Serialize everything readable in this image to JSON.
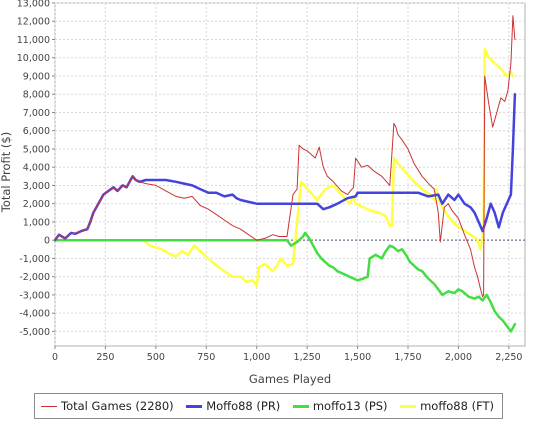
{
  "chart_data": {
    "type": "line",
    "title": "",
    "xlabel": "Games Played",
    "ylabel": "Total Profit ($)",
    "xlim": [
      0,
      2330
    ],
    "ylim": [
      -5800,
      13000
    ],
    "x_ticks": [
      0,
      250,
      500,
      750,
      1000,
      1250,
      1500,
      1750,
      2000,
      2250
    ],
    "x_tick_labels": [
      "0",
      "250",
      "500",
      "750",
      "1,000",
      "1,250",
      "1,500",
      "1,750",
      "2,000",
      "2,250"
    ],
    "y_ticks": [
      -5000,
      -4000,
      -3000,
      -2000,
      -1000,
      0,
      1000,
      2000,
      3000,
      4000,
      5000,
      6000,
      7000,
      8000,
      9000,
      10000,
      11000,
      12000,
      13000
    ],
    "y_tick_labels": [
      "-5,000",
      "-4,000",
      "-3,000",
      "-2,000",
      "-1,000",
      "0",
      "1,000",
      "2,000",
      "3,000",
      "4,000",
      "5,000",
      "6,000",
      "7,000",
      "8,000",
      "9,000",
      "10,000",
      "11,000",
      "12,000",
      "13,000"
    ],
    "grid": true,
    "zero_line": true,
    "legend_position": "bottom",
    "series": [
      {
        "name": "Total Games (2280)",
        "color": "#cc3333",
        "width": 1,
        "x": [
          0,
          20,
          50,
          80,
          100,
          130,
          160,
          175,
          190,
          215,
          240,
          265,
          290,
          310,
          335,
          355,
          370,
          385,
          400,
          420,
          450,
          500,
          550,
          600,
          640,
          680,
          720,
          760,
          800,
          840,
          880,
          920,
          960,
          1000,
          1040,
          1080,
          1110,
          1150,
          1180,
          1200,
          1210,
          1230,
          1250,
          1270,
          1290,
          1310,
          1330,
          1350,
          1380,
          1420,
          1450,
          1480,
          1490,
          1520,
          1550,
          1580,
          1620,
          1660,
          1680,
          1690,
          1700,
          1720,
          1750,
          1780,
          1820,
          1860,
          1880,
          1900,
          1910,
          1930,
          1950,
          1970,
          2000,
          2030,
          2060,
          2080,
          2095,
          2110,
          2120,
          2125,
          2130,
          2150,
          2170,
          2190,
          2210,
          2230,
          2245,
          2260,
          2270,
          2280
        ],
        "y": [
          0,
          300,
          100,
          400,
          350,
          500,
          600,
          1000,
          1500,
          2000,
          2500,
          2700,
          2900,
          2700,
          3000,
          2900,
          3200,
          3500,
          3300,
          3200,
          3100,
          3000,
          2700,
          2400,
          2300,
          2400,
          1900,
          1700,
          1400,
          1100,
          800,
          600,
          300,
          0,
          100,
          300,
          200,
          200,
          2500,
          2800,
          5200,
          5000,
          4900,
          4700,
          4500,
          5100,
          4000,
          3500,
          3200,
          2700,
          2500,
          2900,
          4500,
          4000,
          4100,
          3800,
          3500,
          3000,
          6400,
          6200,
          5800,
          5500,
          5000,
          4200,
          3500,
          3000,
          2800,
          1500,
          -100,
          1800,
          2000,
          1600,
          1200,
          300,
          -500,
          -1500,
          -2000,
          -2700,
          -3100,
          -3000,
          9000,
          7500,
          6200,
          7000,
          7800,
          7600,
          8200,
          9700,
          12300,
          11000
        ]
      },
      {
        "name": "Moffo88 (PR)",
        "color": "#4444dd",
        "width": 2.5,
        "x": [
          0,
          20,
          50,
          80,
          100,
          130,
          160,
          175,
          190,
          215,
          240,
          265,
          290,
          310,
          335,
          355,
          370,
          385,
          400,
          420,
          450,
          500,
          550,
          600,
          640,
          680,
          700,
          720,
          760,
          800,
          840,
          880,
          900,
          920,
          960,
          1000,
          1100,
          1200,
          1300,
          1330,
          1360,
          1400,
          1450,
          1490,
          1500,
          1600,
          1700,
          1800,
          1850,
          1900,
          1920,
          1950,
          1980,
          2000,
          2030,
          2060,
          2080,
          2100,
          2120,
          2140,
          2160,
          2180,
          2200,
          2220,
          2240,
          2260,
          2270,
          2280
        ],
        "y": [
          0,
          300,
          100,
          400,
          350,
          500,
          600,
          1000,
          1500,
          2000,
          2500,
          2700,
          2900,
          2700,
          3000,
          2900,
          3200,
          3500,
          3300,
          3200,
          3300,
          3300,
          3300,
          3200,
          3100,
          3000,
          2900,
          2800,
          2600,
          2600,
          2400,
          2500,
          2300,
          2200,
          2100,
          2000,
          2000,
          2000,
          2000,
          1700,
          1800,
          2000,
          2300,
          2400,
          2600,
          2600,
          2600,
          2600,
          2400,
          2500,
          2000,
          2500,
          2200,
          2500,
          2000,
          1800,
          1500,
          1000,
          500,
          1200,
          2000,
          1500,
          700,
          1500,
          2000,
          2500,
          5000,
          8000
        ]
      },
      {
        "name": "moffo13 (PS)",
        "color": "#44dd44",
        "width": 2.5,
        "x": [
          0,
          200,
          400,
          600,
          800,
          1000,
          1100,
          1150,
          1170,
          1200,
          1230,
          1240,
          1260,
          1280,
          1300,
          1320,
          1340,
          1360,
          1380,
          1400,
          1420,
          1440,
          1460,
          1480,
          1500,
          1530,
          1550,
          1560,
          1590,
          1620,
          1640,
          1660,
          1680,
          1700,
          1720,
          1740,
          1760,
          1780,
          1800,
          1820,
          1850,
          1880,
          1900,
          1920,
          1950,
          1980,
          2000,
          2020,
          2050,
          2080,
          2100,
          2120,
          2140,
          2160,
          2180,
          2200,
          2220,
          2240,
          2260,
          2270,
          2280
        ],
        "y": [
          0,
          0,
          0,
          0,
          0,
          0,
          0,
          0,
          -300,
          -100,
          200,
          400,
          100,
          -300,
          -700,
          -1000,
          -1200,
          -1400,
          -1500,
          -1700,
          -1800,
          -1900,
          -2000,
          -2100,
          -2200,
          -2100,
          -2000,
          -1000,
          -800,
          -1000,
          -600,
          -300,
          -400,
          -600,
          -500,
          -800,
          -1200,
          -1400,
          -1600,
          -1700,
          -2100,
          -2400,
          -2700,
          -3000,
          -2800,
          -2900,
          -2700,
          -2800,
          -3100,
          -3200,
          -3100,
          -3300,
          -3000,
          -3400,
          -3900,
          -4200,
          -4400,
          -4700,
          -5000,
          -4800,
          -4600
        ]
      },
      {
        "name": "moffo88 (FT)",
        "color": "#ffff44",
        "width": 2.5,
        "x": [
          440,
          470,
          500,
          530,
          560,
          600,
          630,
          660,
          690,
          720,
          760,
          800,
          840,
          880,
          920,
          950,
          980,
          1000,
          1010,
          1040,
          1080,
          1100,
          1120,
          1150,
          1180,
          1200,
          1220,
          1260,
          1300,
          1340,
          1380,
          1420,
          1460,
          1480,
          1490,
          1530,
          1570,
          1610,
          1640,
          1660,
          1670,
          1680,
          1700,
          1740,
          1780,
          1820,
          1860,
          1880,
          1890,
          1900,
          1920,
          1950,
          1990,
          2020,
          2060,
          2090,
          2100,
          2110,
          2120,
          2125,
          2130,
          2150,
          2180,
          2210,
          2240,
          2260,
          2270
        ],
        "y": [
          0,
          -300,
          -400,
          -500,
          -700,
          -900,
          -600,
          -800,
          -300,
          -600,
          -1000,
          -1400,
          -1700,
          -2000,
          -2000,
          -2300,
          -2200,
          -2500,
          -1500,
          -1300,
          -1700,
          -1400,
          -1000,
          -1400,
          -1300,
          1000,
          3200,
          2700,
          2200,
          2800,
          3000,
          2500,
          2000,
          2400,
          2000,
          1800,
          1600,
          1500,
          1300,
          800,
          800,
          4500,
          4200,
          3700,
          3200,
          2800,
          2500,
          2200,
          2800,
          2300,
          1800,
          1300,
          800,
          600,
          300,
          100,
          -200,
          -500,
          300,
          600,
          10500,
          10000,
          9700,
          9400,
          9000,
          9200,
          9000
        ]
      }
    ]
  }
}
